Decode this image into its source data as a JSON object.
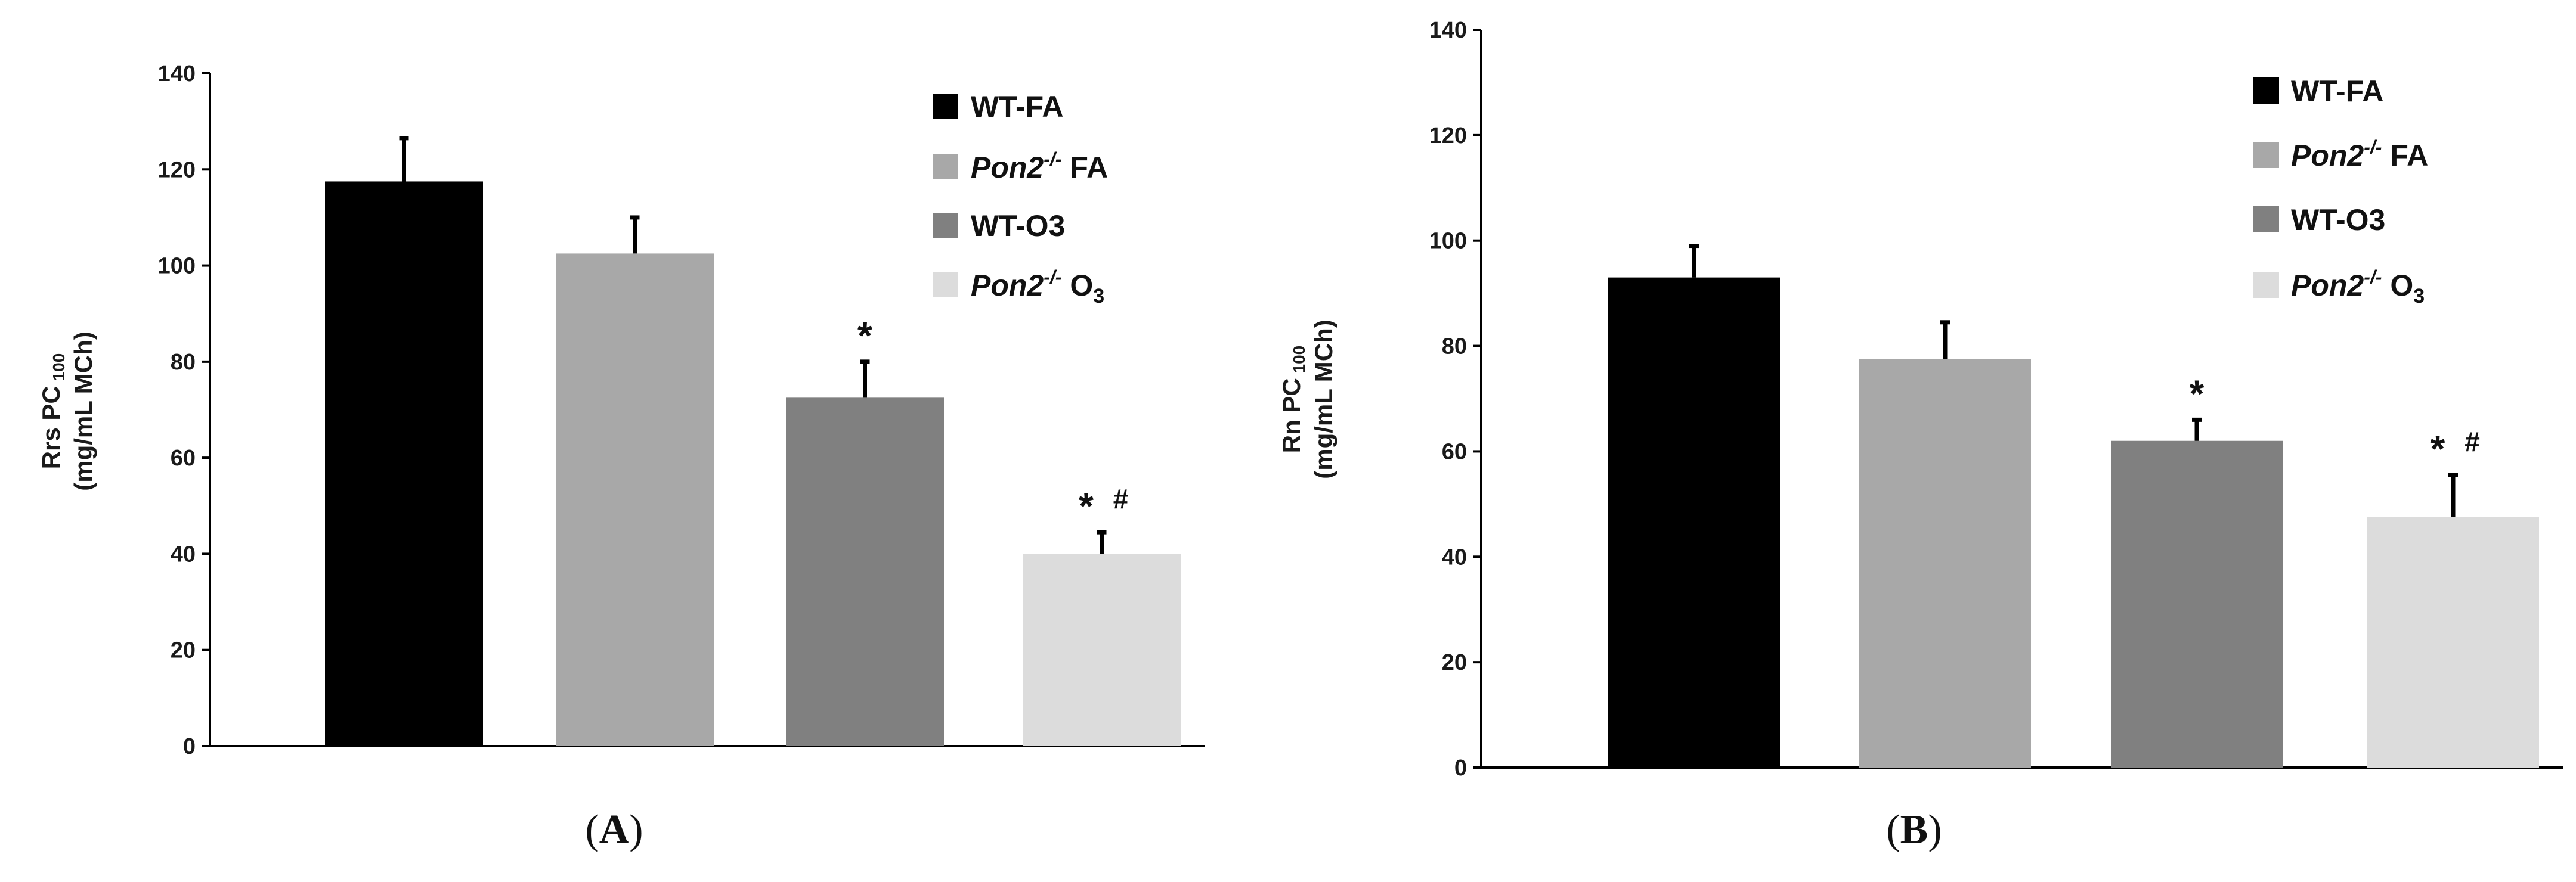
{
  "chart_data": [
    {
      "type": "bar",
      "panel_label": "A",
      "ylabel_line1": "Rrs PC",
      "ylabel_sub": "100",
      "ylabel_line2": "(mg/mL MCh)",
      "ylim": [
        0,
        140
      ],
      "yticks": [
        0,
        20,
        40,
        60,
        80,
        100,
        120,
        140
      ],
      "categories": [
        "WT-FA",
        "Pon2-/- FA",
        "WT-O3",
        "Pon2-/- O3"
      ],
      "values": [
        117.5,
        102.5,
        72.5,
        40
      ],
      "errors": [
        9,
        7.5,
        7.5,
        4.5
      ],
      "annotations": [
        {
          "index": 2,
          "star": "*",
          "hash": ""
        },
        {
          "index": 3,
          "star": "*",
          "hash": "#"
        }
      ]
    },
    {
      "type": "bar",
      "panel_label": "B",
      "ylabel_line1": "Rn PC",
      "ylabel_sub": "100",
      "ylabel_line2": "(mg/mL MCh)",
      "ylim": [
        0,
        140
      ],
      "yticks": [
        0,
        20,
        40,
        60,
        80,
        100,
        120,
        140
      ],
      "categories": [
        "WT-FA",
        "Pon2-/- FA",
        "WT-O3",
        "Pon2-/- O3"
      ],
      "values": [
        93,
        77.5,
        62,
        47.5
      ],
      "errors": [
        6,
        7,
        4,
        8
      ],
      "annotations": [
        {
          "index": 2,
          "star": "*",
          "hash": ""
        },
        {
          "index": 3,
          "star": "*",
          "hash": "#"
        }
      ]
    }
  ],
  "legend": [
    {
      "key": "wt_fa",
      "main": "WT-FA",
      "italic": "",
      "sup": "",
      "rest": "",
      "sub": "",
      "color": "#000000"
    },
    {
      "key": "pon2_fa",
      "main": "",
      "italic": "Pon2",
      "sup": "-/-",
      "rest": " FA",
      "sub": "",
      "color": "#a8a8a8"
    },
    {
      "key": "wt_o3",
      "main": "WT-O3",
      "italic": "",
      "sup": "",
      "rest": "",
      "sub": "",
      "color": "#808080"
    },
    {
      "key": "pon2_o3",
      "main": "",
      "italic": "Pon2",
      "sup": "-/-",
      "rest": " O",
      "sub": "3",
      "color": "#dcdcdc"
    }
  ],
  "colors": [
    "#000000",
    "#a8a8a8",
    "#808080",
    "#dcdcdc"
  ]
}
